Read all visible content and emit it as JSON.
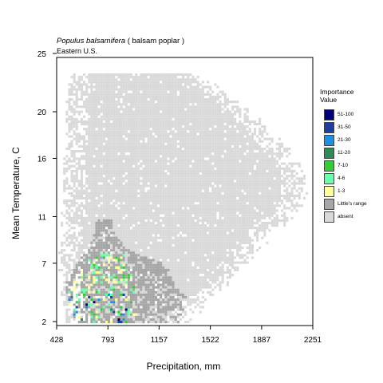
{
  "title": {
    "species": "Populus balsamifera",
    "common": " ( balsam poplar )",
    "region": "Eastern U.S."
  },
  "legend": {
    "title1": "Importance",
    "title2": "Value",
    "items": [
      {
        "label": "51-100",
        "color": "#00007F"
      },
      {
        "label": "31-50",
        "color": "#1E3F9F"
      },
      {
        "label": "21-30",
        "color": "#1E8FE7"
      },
      {
        "label": "11-20",
        "color": "#2E8B57"
      },
      {
        "label": "7-10",
        "color": "#32CD32"
      },
      {
        "label": "4-6",
        "color": "#66FFAA"
      },
      {
        "label": "1-3",
        "color": "#FFFF99"
      },
      {
        "label": "Little's range",
        "color": "#A6A6A6"
      },
      {
        "label": "absent",
        "color": "#D9D9D9"
      }
    ]
  },
  "chart_data": {
    "type": "heatmap",
    "xlabel": "Precipitation, mm",
    "ylabel": "Mean Temperature, C",
    "xlim": [
      428,
      2251
    ],
    "ylim": [
      2,
      25
    ],
    "xticks": [
      428,
      793,
      1157,
      1522,
      1887,
      2251
    ],
    "yticks": [
      2,
      7,
      11,
      16,
      20,
      25
    ],
    "grid": false,
    "legend_position": "right",
    "categories": [
      "51-100",
      "31-50",
      "21-30",
      "11-20",
      "7-10",
      "4-6",
      "1-3",
      "Little's range",
      "absent"
    ],
    "colors": {
      "absent": "#D9D9D9",
      "range": "#A6A6A6",
      "iv_1_3": "#FFFF99",
      "iv_4_6": "#66FFAA",
      "iv_7_10": "#32CD32",
      "iv_11_20": "#2E8B57",
      "iv_21_30": "#1E8FE7",
      "iv_31_50": "#1E3F9F",
      "iv_51_100": "#00007F"
    },
    "absent_region": [
      [
        2.5,
        470,
        1350
      ],
      [
        4,
        470,
        1500
      ],
      [
        6,
        440,
        1650
      ],
      [
        8,
        450,
        1800
      ],
      [
        10,
        460,
        1950
      ],
      [
        12,
        470,
        2150
      ],
      [
        14,
        470,
        2180
      ],
      [
        16,
        470,
        2100
      ],
      [
        18,
        490,
        1950
      ],
      [
        20,
        490,
        1800
      ],
      [
        22,
        500,
        1600
      ],
      [
        24.5,
        510,
        1200
      ]
    ],
    "range_region": [
      [
        2.5,
        520,
        1300
      ],
      [
        4,
        500,
        1350
      ],
      [
        5.5,
        480,
        1250
      ],
      [
        7,
        560,
        1200
      ],
      [
        8.5,
        650,
        900
      ],
      [
        10,
        700,
        820
      ]
    ],
    "presence_region": [
      [
        2.5,
        500,
        1000
      ],
      [
        4,
        500,
        950
      ],
      [
        5.5,
        520,
        1000
      ],
      [
        7,
        650,
        900
      ]
    ]
  }
}
